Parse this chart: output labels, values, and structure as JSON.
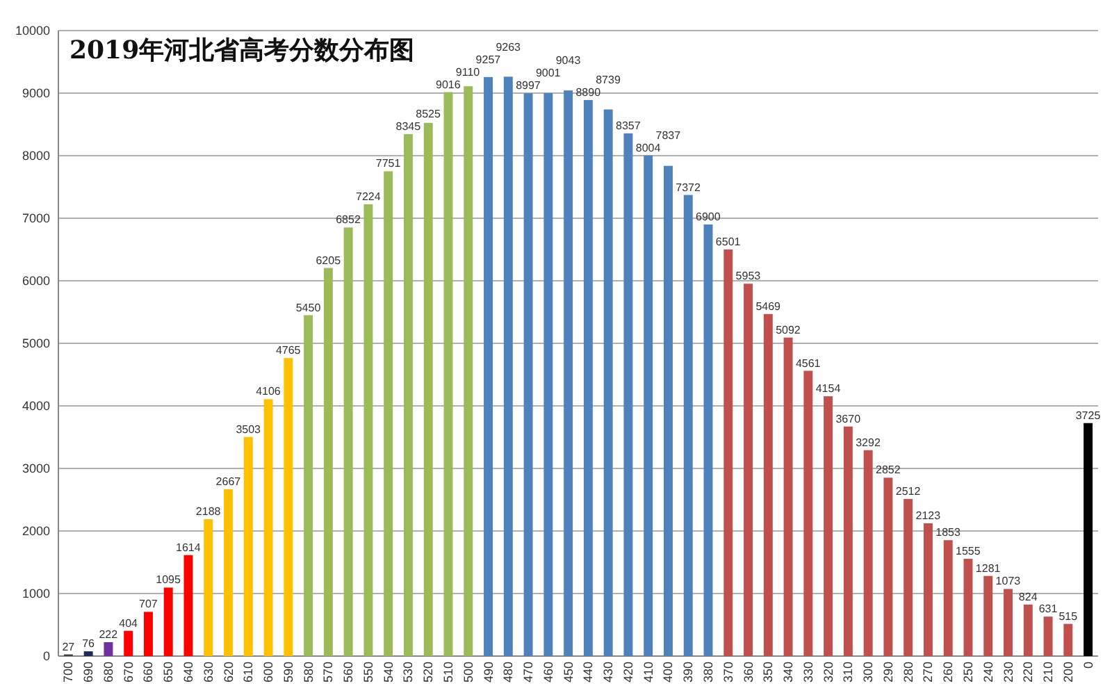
{
  "chart_data": {
    "type": "bar",
    "title": "2019年河北省高考分数分布图",
    "categories": [
      "700",
      "690",
      "680",
      "670",
      "660",
      "650",
      "640",
      "630",
      "620",
      "610",
      "600",
      "590",
      "580",
      "570",
      "560",
      "550",
      "540",
      "530",
      "520",
      "510",
      "500",
      "490",
      "480",
      "470",
      "460",
      "450",
      "440",
      "430",
      "420",
      "410",
      "400",
      "390",
      "380",
      "370",
      "360",
      "350",
      "340",
      "330",
      "320",
      "310",
      "300",
      "290",
      "280",
      "270",
      "260",
      "250",
      "240",
      "230",
      "220",
      "210",
      "200",
      "0"
    ],
    "values": [
      27,
      76,
      222,
      404,
      707,
      1095,
      1614,
      2188,
      2667,
      3503,
      4106,
      4765,
      5450,
      6205,
      6852,
      7224,
      7751,
      8345,
      8525,
      9016,
      9110,
      9257,
      9263,
      8997,
      9001,
      9043,
      8890,
      8739,
      8357,
      8004,
      7837,
      7372,
      6900,
      6501,
      5953,
      5469,
      5092,
      4561,
      4154,
      3670,
      3292,
      2852,
      2512,
      2123,
      1853,
      1555,
      1281,
      1073,
      824,
      631,
      515,
      3725
    ],
    "colors": [
      "#404040",
      "#1f2a5c",
      "#7030a0",
      "#ff0000",
      "#ff0000",
      "#ff0000",
      "#ff0000",
      "#ffc000",
      "#ffc000",
      "#ffc000",
      "#ffc000",
      "#ffc000",
      "#9bbb59",
      "#9bbb59",
      "#9bbb59",
      "#9bbb59",
      "#9bbb59",
      "#9bbb59",
      "#9bbb59",
      "#9bbb59",
      "#9bbb59",
      "#4f81bd",
      "#4f81bd",
      "#4f81bd",
      "#4f81bd",
      "#4f81bd",
      "#4f81bd",
      "#4f81bd",
      "#4f81bd",
      "#4f81bd",
      "#4f81bd",
      "#4f81bd",
      "#4f81bd",
      "#c0504d",
      "#c0504d",
      "#c0504d",
      "#c0504d",
      "#c0504d",
      "#c0504d",
      "#c0504d",
      "#c0504d",
      "#c0504d",
      "#c0504d",
      "#c0504d",
      "#c0504d",
      "#c0504d",
      "#c0504d",
      "#c0504d",
      "#c0504d",
      "#c0504d",
      "#c0504d",
      "#000000"
    ],
    "ylim": [
      0,
      10000
    ],
    "yticks": [
      0,
      1000,
      2000,
      3000,
      4000,
      5000,
      6000,
      7000,
      8000,
      9000,
      10000
    ],
    "grid": "y",
    "data_labels": true
  }
}
